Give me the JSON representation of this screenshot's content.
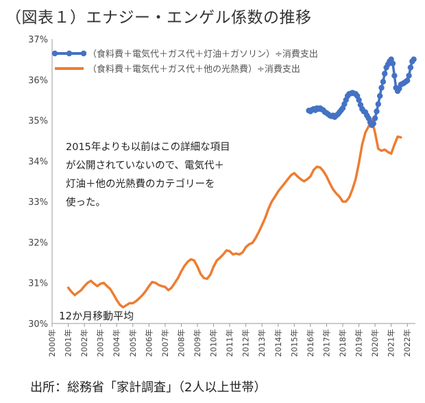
{
  "title": "（図表１）エナジー・エンゲル係数の推移",
  "source": "出所：総務省「家計調査」（2人以上世帯）",
  "chart_data": {
    "type": "line",
    "ylim": [
      30,
      37
    ],
    "yticks": [
      "30%",
      "31%",
      "32%",
      "33%",
      "34%",
      "35%",
      "36%",
      "37%"
    ],
    "xlim": [
      2000,
      2022.5
    ],
    "xticks": [
      "2000年",
      "2001年",
      "2002年",
      "2003年",
      "2004年",
      "2005年",
      "2006年",
      "2007年",
      "2008年",
      "2009年",
      "2010年",
      "2011年",
      "2012年",
      "2013年",
      "2014年",
      "2015年",
      "2016年",
      "2017年",
      "2018年",
      "2019年",
      "2020年",
      "2021年",
      "2022年"
    ],
    "grid": false,
    "legend_position": "top-left",
    "annotations": {
      "note": [
        "2015年よりも以前はこの詳細な項目",
        "が公開されていないので、電気代＋",
        "灯油＋他の光熱費のカテゴリーを",
        "使った。"
      ],
      "moving_average": "12か月移動平均"
    },
    "series": [
      {
        "name": "（食料費＋電気代＋ガス代＋灯油＋ガソリン）÷消費支出",
        "color": "#4472C4",
        "markers": true,
        "points": [
          [
            2015.9,
            35.24
          ],
          [
            2016.0,
            35.22
          ],
          [
            2016.1,
            35.26
          ],
          [
            2016.2,
            35.28
          ],
          [
            2016.3,
            35.25
          ],
          [
            2016.4,
            35.3
          ],
          [
            2016.5,
            35.28
          ],
          [
            2016.6,
            35.3
          ],
          [
            2016.7,
            35.27
          ],
          [
            2016.8,
            35.25
          ],
          [
            2016.9,
            35.2
          ],
          [
            2017.0,
            35.18
          ],
          [
            2017.1,
            35.15
          ],
          [
            2017.2,
            35.12
          ],
          [
            2017.3,
            35.1
          ],
          [
            2017.4,
            35.12
          ],
          [
            2017.5,
            35.08
          ],
          [
            2017.6,
            35.12
          ],
          [
            2017.7,
            35.15
          ],
          [
            2017.8,
            35.2
          ],
          [
            2017.9,
            35.25
          ],
          [
            2018.0,
            35.3
          ],
          [
            2018.1,
            35.4
          ],
          [
            2018.2,
            35.5
          ],
          [
            2018.3,
            35.6
          ],
          [
            2018.4,
            35.65
          ],
          [
            2018.5,
            35.66
          ],
          [
            2018.6,
            35.68
          ],
          [
            2018.7,
            35.66
          ],
          [
            2018.8,
            35.65
          ],
          [
            2018.9,
            35.6
          ],
          [
            2019.0,
            35.5
          ],
          [
            2019.1,
            35.38
          ],
          [
            2019.2,
            35.28
          ],
          [
            2019.3,
            35.22
          ],
          [
            2019.4,
            35.2
          ],
          [
            2019.5,
            35.12
          ],
          [
            2019.6,
            35.05
          ],
          [
            2019.7,
            34.95
          ],
          [
            2019.8,
            34.88
          ],
          [
            2019.9,
            34.92
          ],
          [
            2020.0,
            35.05
          ],
          [
            2020.1,
            35.22
          ],
          [
            2020.2,
            35.4
          ],
          [
            2020.3,
            35.6
          ],
          [
            2020.4,
            35.8
          ],
          [
            2020.5,
            35.95
          ],
          [
            2020.6,
            36.15
          ],
          [
            2020.7,
            36.3
          ],
          [
            2020.8,
            36.38
          ],
          [
            2020.9,
            36.45
          ],
          [
            2021.0,
            36.5
          ],
          [
            2021.1,
            36.4
          ],
          [
            2021.2,
            36.1
          ],
          [
            2021.3,
            35.8
          ],
          [
            2021.4,
            35.72
          ],
          [
            2021.5,
            35.78
          ],
          [
            2021.6,
            35.88
          ],
          [
            2021.7,
            35.9
          ],
          [
            2021.8,
            35.92
          ],
          [
            2021.9,
            35.95
          ],
          [
            2022.0,
            35.98
          ],
          [
            2022.1,
            36.1
          ],
          [
            2022.2,
            36.3
          ],
          [
            2022.3,
            36.45
          ],
          [
            2022.4,
            36.5
          ]
        ]
      },
      {
        "name": "（食料費＋電気代＋ガス代＋他の光熱費）÷消費支出",
        "color": "#ED7D31",
        "markers": false,
        "points": [
          [
            2001.0,
            30.88
          ],
          [
            2001.2,
            30.78
          ],
          [
            2001.4,
            30.7
          ],
          [
            2001.6,
            30.76
          ],
          [
            2001.8,
            30.82
          ],
          [
            2002.0,
            30.92
          ],
          [
            2002.2,
            31.0
          ],
          [
            2002.4,
            31.05
          ],
          [
            2002.6,
            30.98
          ],
          [
            2002.8,
            30.92
          ],
          [
            2003.0,
            30.98
          ],
          [
            2003.2,
            31.0
          ],
          [
            2003.4,
            30.92
          ],
          [
            2003.6,
            30.85
          ],
          [
            2003.8,
            30.72
          ],
          [
            2004.0,
            30.58
          ],
          [
            2004.2,
            30.46
          ],
          [
            2004.4,
            30.4
          ],
          [
            2004.6,
            30.45
          ],
          [
            2004.8,
            30.5
          ],
          [
            2005.0,
            30.5
          ],
          [
            2005.2,
            30.55
          ],
          [
            2005.4,
            30.62
          ],
          [
            2005.6,
            30.7
          ],
          [
            2005.8,
            30.8
          ],
          [
            2006.0,
            30.92
          ],
          [
            2006.2,
            31.02
          ],
          [
            2006.4,
            31.0
          ],
          [
            2006.6,
            30.95
          ],
          [
            2006.8,
            30.92
          ],
          [
            2007.0,
            30.9
          ],
          [
            2007.2,
            30.82
          ],
          [
            2007.4,
            30.88
          ],
          [
            2007.6,
            31.0
          ],
          [
            2007.8,
            31.12
          ],
          [
            2008.0,
            31.28
          ],
          [
            2008.2,
            31.42
          ],
          [
            2008.4,
            31.52
          ],
          [
            2008.6,
            31.58
          ],
          [
            2008.8,
            31.55
          ],
          [
            2009.0,
            31.4
          ],
          [
            2009.2,
            31.22
          ],
          [
            2009.4,
            31.12
          ],
          [
            2009.6,
            31.1
          ],
          [
            2009.8,
            31.2
          ],
          [
            2010.0,
            31.4
          ],
          [
            2010.2,
            31.55
          ],
          [
            2010.4,
            31.62
          ],
          [
            2010.6,
            31.7
          ],
          [
            2010.8,
            31.8
          ],
          [
            2011.0,
            31.78
          ],
          [
            2011.2,
            31.7
          ],
          [
            2011.4,
            31.72
          ],
          [
            2011.6,
            31.7
          ],
          [
            2011.8,
            31.75
          ],
          [
            2012.0,
            31.88
          ],
          [
            2012.2,
            31.95
          ],
          [
            2012.4,
            31.98
          ],
          [
            2012.6,
            32.1
          ],
          [
            2012.8,
            32.25
          ],
          [
            2013.0,
            32.42
          ],
          [
            2013.2,
            32.6
          ],
          [
            2013.4,
            32.82
          ],
          [
            2013.6,
            33.0
          ],
          [
            2013.8,
            33.12
          ],
          [
            2014.0,
            33.25
          ],
          [
            2014.2,
            33.35
          ],
          [
            2014.4,
            33.45
          ],
          [
            2014.6,
            33.55
          ],
          [
            2014.8,
            33.65
          ],
          [
            2015.0,
            33.7
          ],
          [
            2015.2,
            33.62
          ],
          [
            2015.4,
            33.55
          ],
          [
            2015.6,
            33.5
          ],
          [
            2015.8,
            33.55
          ],
          [
            2016.0,
            33.62
          ],
          [
            2016.2,
            33.78
          ],
          [
            2016.4,
            33.86
          ],
          [
            2016.6,
            33.84
          ],
          [
            2016.8,
            33.75
          ],
          [
            2017.0,
            33.62
          ],
          [
            2017.2,
            33.45
          ],
          [
            2017.4,
            33.3
          ],
          [
            2017.6,
            33.2
          ],
          [
            2017.8,
            33.12
          ],
          [
            2018.0,
            33.0
          ],
          [
            2018.2,
            33.0
          ],
          [
            2018.4,
            33.1
          ],
          [
            2018.6,
            33.3
          ],
          [
            2018.8,
            33.55
          ],
          [
            2019.0,
            33.95
          ],
          [
            2019.2,
            34.4
          ],
          [
            2019.4,
            34.7
          ],
          [
            2019.6,
            34.85
          ],
          [
            2019.8,
            35.02
          ],
          [
            2020.0,
            34.7
          ],
          [
            2020.2,
            34.3
          ],
          [
            2020.4,
            34.25
          ],
          [
            2020.6,
            34.28
          ],
          [
            2020.8,
            34.22
          ],
          [
            2021.0,
            34.18
          ],
          [
            2021.2,
            34.4
          ],
          [
            2021.4,
            34.6
          ],
          [
            2021.6,
            34.58
          ]
        ]
      }
    ]
  }
}
